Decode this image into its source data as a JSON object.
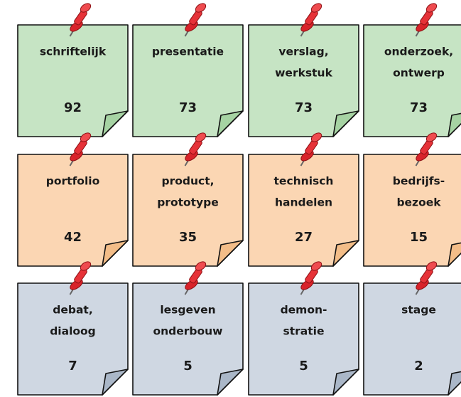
{
  "rows": [
    {
      "notes": [
        {
          "lines": [
            "schriftelijk"
          ],
          "value": 92
        },
        {
          "lines": [
            "presentatie"
          ],
          "value": 73
        },
        {
          "lines": [
            "verslag,",
            "werkstuk"
          ],
          "value": 73
        },
        {
          "lines": [
            "onderzoek,",
            "ontwerp"
          ],
          "value": 73
        }
      ]
    },
    {
      "notes": [
        {
          "lines": [
            "portfolio"
          ],
          "value": 42
        },
        {
          "lines": [
            "product,",
            "prototype"
          ],
          "value": 35
        },
        {
          "lines": [
            "technisch",
            "handelen"
          ],
          "value": 27
        },
        {
          "lines": [
            "bedrijfs-",
            "bezoek"
          ],
          "value": 15
        }
      ]
    },
    {
      "notes": [
        {
          "lines": [
            "debat,",
            "dialoog"
          ],
          "value": 7
        },
        {
          "lines": [
            "lesgeven",
            "onderbouw"
          ],
          "value": 5
        },
        {
          "lines": [
            "demon-",
            "stratie"
          ],
          "value": 5
        },
        {
          "lines": [
            "stage"
          ],
          "value": 2
        }
      ]
    }
  ]
}
